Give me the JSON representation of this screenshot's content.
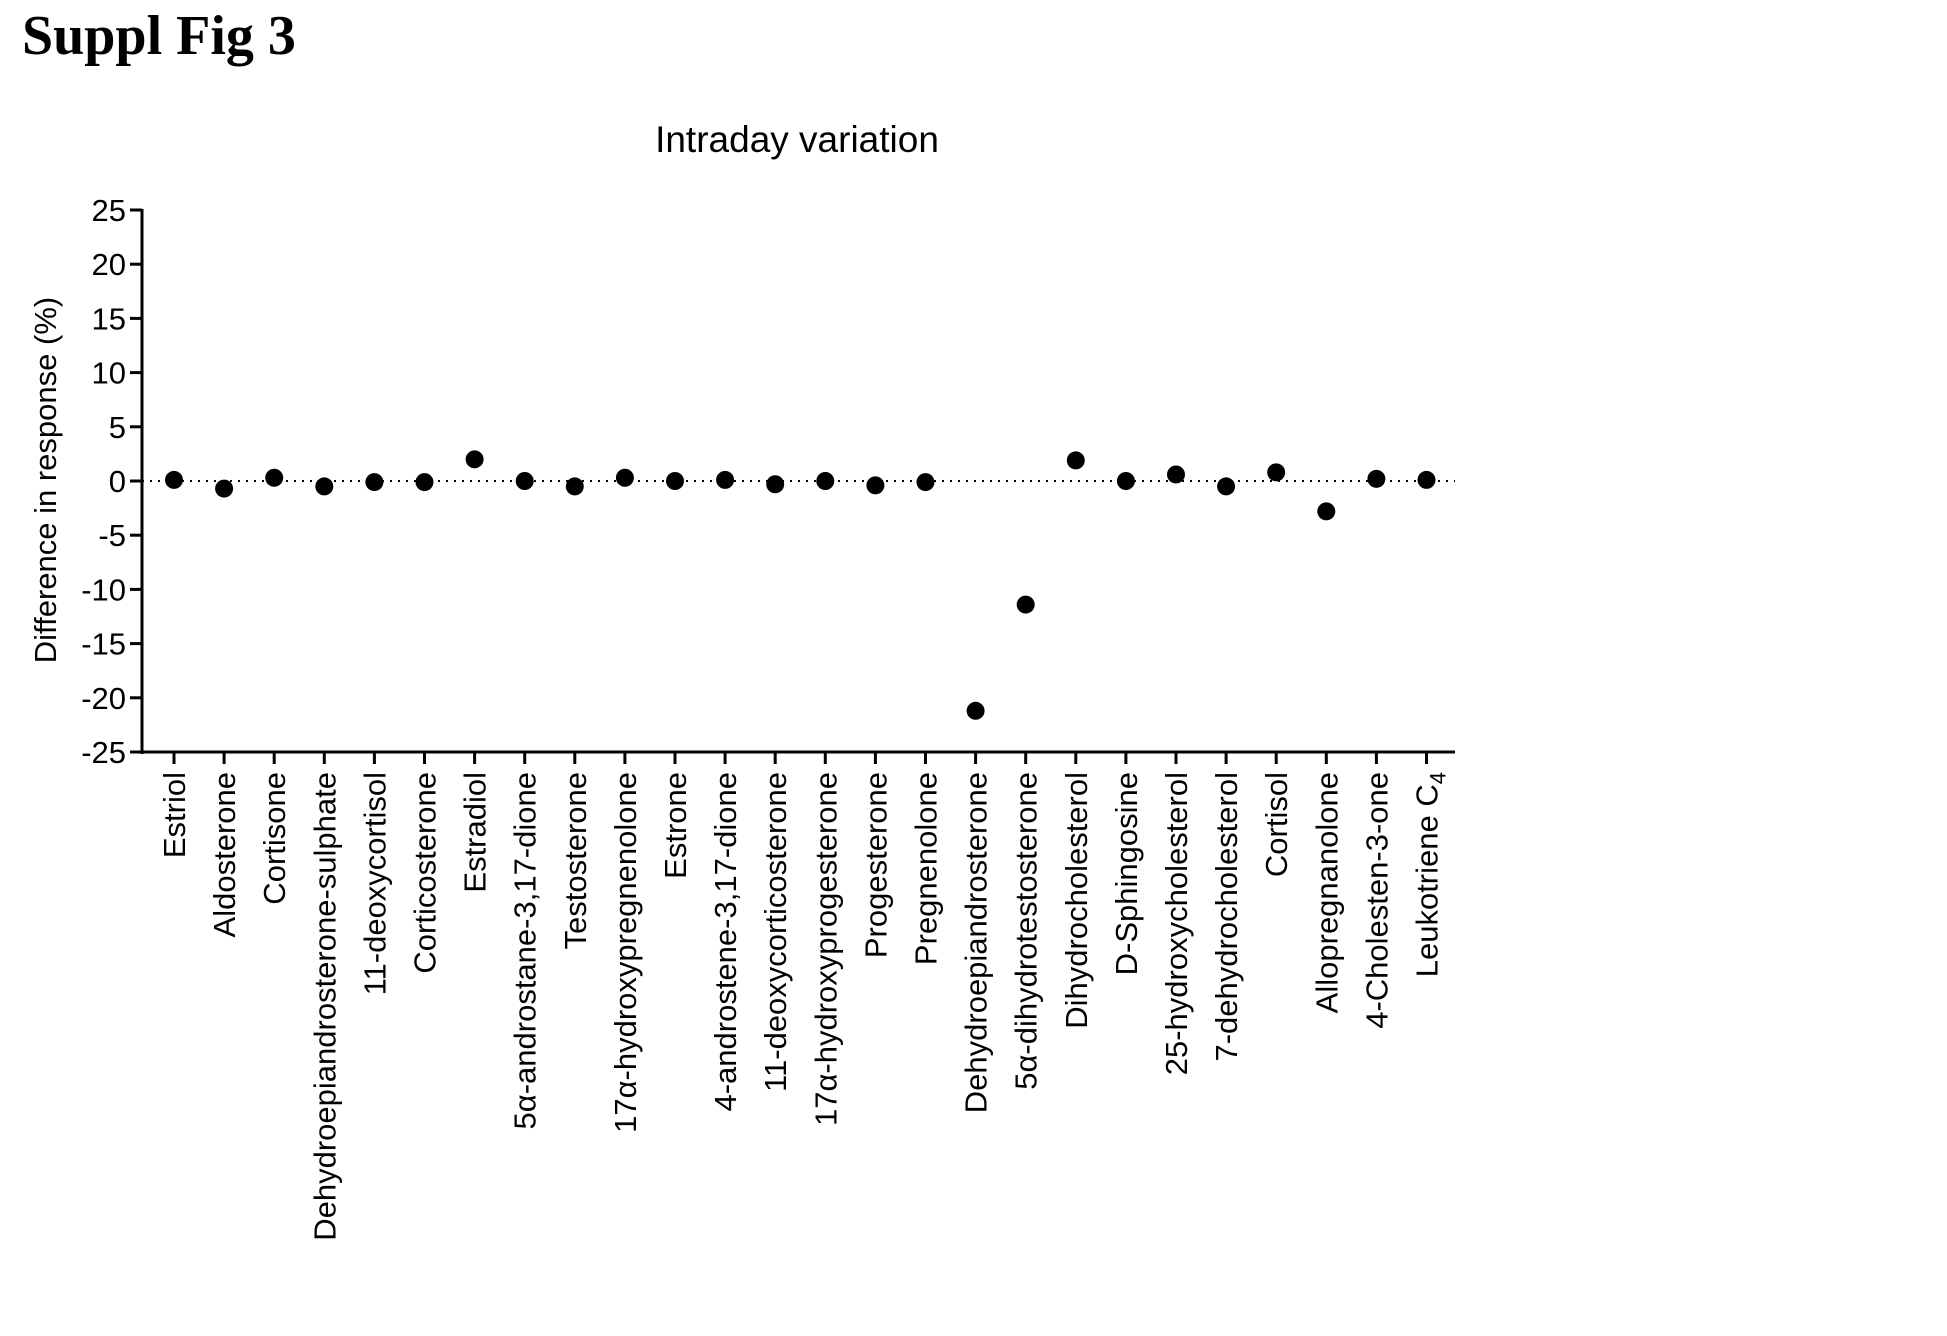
{
  "figure_label": "Suppl Fig 3",
  "chart_data": {
    "type": "scatter",
    "title": "Intraday variation",
    "xlabel": "",
    "ylabel": "Difference in response  (%)",
    "ylim": [
      -25,
      25
    ],
    "yticks": [
      25,
      20,
      15,
      10,
      5,
      0,
      -5,
      -10,
      -15,
      -20,
      -25
    ],
    "ytick_labels": [
      "25",
      "20",
      "15",
      "10",
      "5",
      "0",
      "-5",
      "-10",
      "-15",
      "-20",
      "-25"
    ],
    "reference_line": 0,
    "grid": false,
    "categories": [
      "Estriol",
      "Aldosterone",
      "Cortisone",
      "Dehydroepiandrosterone-sulphate",
      "11-deoxycortisol",
      "Corticosterone",
      "Estradiol",
      "5α-androstane-3,17-dione",
      "Testosterone",
      "17α-hydroxypregnenolone",
      "Estrone",
      "4-androstene-3,17-dione",
      "11-deoxycorticosterone",
      "17α-hydroxyprogesterone",
      "Progesterone",
      "Pregnenolone",
      "Dehydroepiandrosterone",
      "5α-dihydrotestosterone",
      "Dihydrocholesterol",
      "D-Sphingosine",
      "25-hydroxycholesterol",
      "7-dehydrocholesterol",
      "Cortisol",
      "Allopregnanolone",
      "4-Cholesten-3-one",
      "Leukotriene C"
    ],
    "last_label_subscript": "4",
    "values": [
      0.1,
      -0.7,
      0.3,
      -0.5,
      -0.1,
      -0.1,
      2.0,
      0.0,
      -0.5,
      0.3,
      0.0,
      0.1,
      -0.3,
      0.0,
      -0.4,
      -0.1,
      -21.2,
      -11.4,
      1.9,
      0.0,
      0.6,
      -0.5,
      0.8,
      -2.8,
      0.2,
      0.1
    ],
    "marker_color": "#000000"
  }
}
